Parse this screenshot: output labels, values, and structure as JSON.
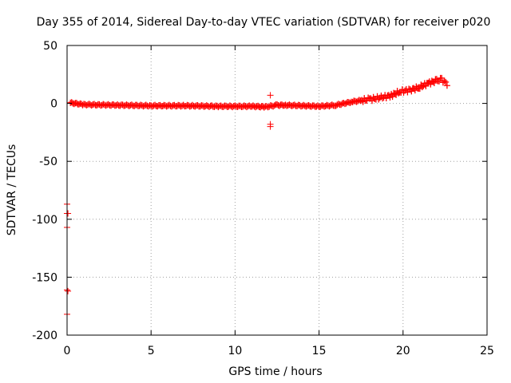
{
  "chart_data": {
    "type": "scatter",
    "title": "Day 355 of 2014, Sidereal Day-to-day VTEC variation (SDTVAR) for receiver p020",
    "xlabel": "GPS time / hours",
    "ylabel": "SDTVAR / TECUs",
    "xlim": [
      0,
      25
    ],
    "ylim": [
      -200,
      50
    ],
    "xticks": [
      0,
      5,
      10,
      15,
      20,
      25
    ],
    "yticks": [
      -200,
      -150,
      -100,
      -50,
      0,
      50
    ],
    "xtick_labels": [
      "0",
      "5",
      "10",
      "15",
      "20",
      "25"
    ],
    "ytick_labels": [
      "-200",
      "-150",
      "-100",
      "-50",
      "0",
      "50"
    ],
    "grid": true,
    "marker": "+",
    "series": [
      {
        "name": "SDTVAR",
        "color": "#ff0000",
        "trend": [
          [
            0.2,
            0.5
          ],
          [
            1,
            -1
          ],
          [
            3,
            -1.5
          ],
          [
            5,
            -2
          ],
          [
            7,
            -2
          ],
          [
            9,
            -2.5
          ],
          [
            11,
            -2.5
          ],
          [
            11.8,
            -3
          ],
          [
            12.5,
            -1.5
          ],
          [
            13,
            -1.5
          ],
          [
            15,
            -2.5
          ],
          [
            16,
            -1.5
          ],
          [
            17,
            1.5
          ],
          [
            18,
            3.5
          ],
          [
            18.7,
            5
          ],
          [
            19.3,
            7
          ],
          [
            19.8,
            10
          ],
          [
            20.5,
            12
          ],
          [
            21,
            14
          ],
          [
            21.5,
            17.5
          ],
          [
            22,
            19.5
          ],
          [
            22.3,
            20.5
          ],
          [
            22.7,
            16
          ]
        ],
        "outliers": [
          [
            0.0,
            -87
          ],
          [
            0.0,
            -95
          ],
          [
            0.05,
            -95
          ],
          [
            0.0,
            -107
          ],
          [
            0.0,
            -161
          ],
          [
            0.05,
            -162
          ],
          [
            0.0,
            -182
          ],
          [
            12.1,
            7
          ],
          [
            12.1,
            -18
          ],
          [
            12.1,
            -20
          ]
        ]
      }
    ]
  }
}
